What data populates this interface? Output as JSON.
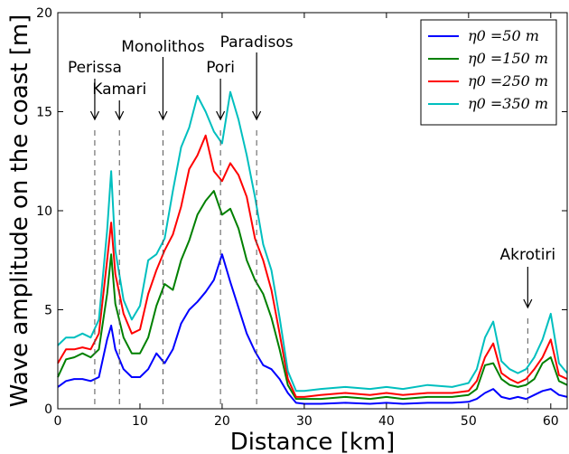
{
  "chart_data": {
    "type": "line",
    "title": "",
    "xlabel": "Distance [km]",
    "ylabel": "Wave amplitude on the coast [m]",
    "xlim": [
      0,
      62
    ],
    "ylim": [
      0,
      20
    ],
    "xticks": [
      0,
      10,
      20,
      30,
      40,
      50,
      60
    ],
    "yticks": [
      0,
      5,
      10,
      15,
      20
    ],
    "grid": false,
    "legend_position": "top-right",
    "x": [
      0,
      1,
      2,
      3,
      4,
      5,
      6,
      6.5,
      7,
      8,
      9,
      10,
      11,
      12,
      13,
      14,
      15,
      16,
      17,
      18,
      19,
      20,
      21,
      22,
      23,
      24,
      25,
      26,
      27,
      28,
      29,
      30,
      32,
      35,
      38,
      40,
      42,
      45,
      48,
      50,
      51,
      52,
      53,
      54,
      55,
      56,
      57,
      58,
      59,
      60,
      61,
      62
    ],
    "series": [
      {
        "name": "η0 =50 m",
        "color": "#0000ff",
        "values": [
          1.1,
          1.4,
          1.5,
          1.5,
          1.4,
          1.6,
          3.5,
          4.2,
          3.0,
          2.0,
          1.6,
          1.6,
          2.0,
          2.8,
          2.3,
          3.0,
          4.3,
          5.0,
          5.4,
          5.9,
          6.5,
          7.8,
          6.4,
          5.1,
          3.8,
          2.9,
          2.2,
          2.0,
          1.5,
          0.8,
          0.3,
          0.25,
          0.25,
          0.3,
          0.25,
          0.3,
          0.25,
          0.3,
          0.3,
          0.35,
          0.5,
          0.8,
          1.0,
          0.6,
          0.5,
          0.6,
          0.5,
          0.7,
          0.9,
          1.0,
          0.7,
          0.6
        ]
      },
      {
        "name": "η0 =150 m",
        "color": "#008000",
        "values": [
          1.6,
          2.5,
          2.6,
          2.8,
          2.6,
          3.0,
          5.8,
          7.8,
          5.3,
          3.6,
          2.8,
          2.8,
          3.6,
          5.2,
          6.3,
          6.0,
          7.5,
          8.5,
          9.8,
          10.5,
          11.0,
          9.8,
          10.1,
          9.1,
          7.5,
          6.5,
          5.8,
          4.6,
          3.0,
          1.2,
          0.5,
          0.5,
          0.5,
          0.6,
          0.5,
          0.6,
          0.5,
          0.6,
          0.6,
          0.7,
          1.0,
          2.2,
          2.3,
          1.5,
          1.2,
          1.1,
          1.2,
          1.5,
          2.3,
          2.6,
          1.4,
          1.2
        ]
      },
      {
        "name": "η0 =250 m",
        "color": "#ff0000",
        "values": [
          2.3,
          3.0,
          3.0,
          3.1,
          3.0,
          3.8,
          7.5,
          9.4,
          6.8,
          4.8,
          3.8,
          4.0,
          5.8,
          7.0,
          8.0,
          8.8,
          10.2,
          12.1,
          12.8,
          13.8,
          12.0,
          11.5,
          12.4,
          11.8,
          10.7,
          8.6,
          7.5,
          6.0,
          3.8,
          1.5,
          0.6,
          0.6,
          0.7,
          0.8,
          0.7,
          0.8,
          0.7,
          0.8,
          0.8,
          0.9,
          1.4,
          2.6,
          3.3,
          1.8,
          1.5,
          1.3,
          1.5,
          2.0,
          2.6,
          3.5,
          1.7,
          1.5
        ]
      },
      {
        "name": "η0 =350 m",
        "color": "#00bfbf",
        "values": [
          3.2,
          3.6,
          3.6,
          3.8,
          3.6,
          4.5,
          9.0,
          12.0,
          8.0,
          5.5,
          4.5,
          5.2,
          7.5,
          7.8,
          8.6,
          11.0,
          13.2,
          14.2,
          15.8,
          15.0,
          14.0,
          13.4,
          16.0,
          14.6,
          12.8,
          10.7,
          8.3,
          7.0,
          4.6,
          1.9,
          0.9,
          0.9,
          1.0,
          1.1,
          1.0,
          1.1,
          1.0,
          1.2,
          1.1,
          1.3,
          2.0,
          3.6,
          4.4,
          2.4,
          2.0,
          1.8,
          2.0,
          2.6,
          3.5,
          4.8,
          2.3,
          1.8
        ]
      }
    ],
    "annotations": [
      {
        "text": "Perissa",
        "x": 4.5
      },
      {
        "text": "Kamari",
        "x": 7.5
      },
      {
        "text": "Monolithos",
        "x": 12.8
      },
      {
        "text": "Pori",
        "x": 19.8
      },
      {
        "text": "Paradisos",
        "x": 24.2
      },
      {
        "text": "Akrotiri",
        "x": 57.2
      }
    ]
  }
}
